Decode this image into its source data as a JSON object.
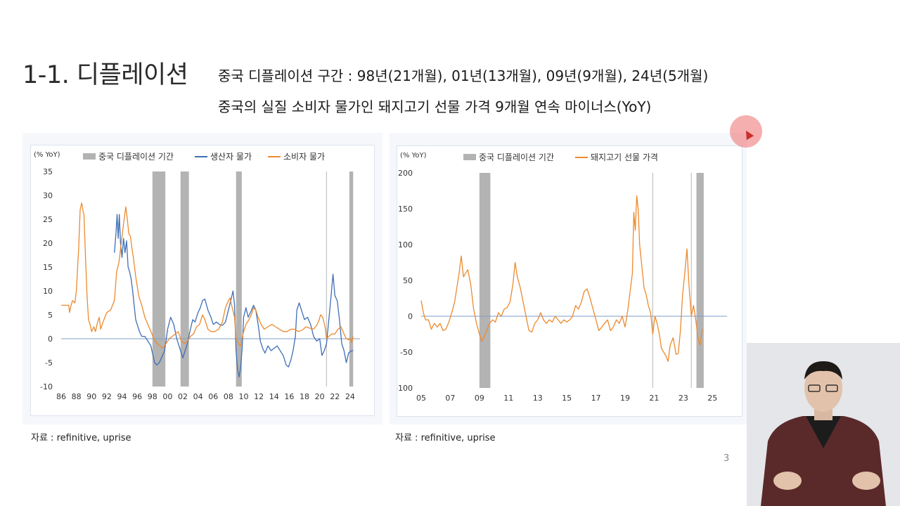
{
  "slide": {
    "title": "1-1. 디플레이션",
    "subtitle_1": "중국 디플레이션 구간 : 98년(21개월), 01년(13개월), 09년(9개월), 24년(5개월)",
    "subtitle_2": "중국의 실질 소비자 물가인 돼지고기 선물 가격 9개월 연속 마이너스(YoY)",
    "page_number": "3"
  },
  "source_left": "자료 : refinitive, uprise",
  "source_right": "자료 : refinitive, uprise",
  "colors": {
    "ppi": "#3f6fb5",
    "cpi": "#ec8a2f",
    "deflation_band": "#b3b3b3",
    "axis": "#7d9cc9"
  },
  "chart_data": [
    {
      "type": "line",
      "unit_label": "(% YoY)",
      "legend": [
        "중국 디플레이션 기간",
        "생산자 물가",
        "소비자 물가"
      ],
      "legend_position": "top",
      "ylim": [
        -10,
        35
      ],
      "yticks": [
        "35",
        "30",
        "25",
        "20",
        "15",
        "10",
        "5",
        "0",
        "-5",
        "-10"
      ],
      "xlim": [
        1986,
        2025.3
      ],
      "xticks": [
        "86",
        "88",
        "90",
        "92",
        "94",
        "96",
        "98",
        "00",
        "02",
        "04",
        "06",
        "08",
        "10",
        "12",
        "14",
        "16",
        "18",
        "20",
        "22",
        "24"
      ],
      "deflation_bands": [
        [
          1998.0,
          1999.7
        ],
        [
          2001.7,
          2002.8
        ],
        [
          2009.0,
          2009.75
        ],
        [
          2023.9,
          2024.4
        ]
      ],
      "reference_lines": [
        2020.9
      ],
      "series": [
        {
          "name": "생산자 물가",
          "x": [
            1993.0,
            1993.2,
            1993.35,
            1993.5,
            1993.65,
            1993.8,
            1994.0,
            1994.2,
            1994.4,
            1994.6,
            1994.8,
            1995.0,
            1995.2,
            1995.4,
            1995.6,
            1995.8,
            1996.0,
            1996.3,
            1996.6,
            1997.0,
            1997.4,
            1997.8,
            1998.0,
            1998.3,
            1998.6,
            1998.9,
            1999.2,
            1999.6,
            2000.0,
            2000.4,
            2000.8,
            2001.2,
            2001.6,
            2002.0,
            2002.3,
            2002.6,
            2003.0,
            2003.3,
            2003.6,
            2004.0,
            2004.3,
            2004.6,
            2004.9,
            2005.3,
            2005.7,
            2006.0,
            2006.4,
            2006.8,
            2007.2,
            2007.6,
            2008.0,
            2008.3,
            2008.6,
            2008.8,
            2009.0,
            2009.2,
            2009.4,
            2009.6,
            2009.8,
            2010.0,
            2010.3,
            2010.6,
            2010.9,
            2011.3,
            2011.6,
            2011.9,
            2012.2,
            2012.5,
            2012.8,
            2013.2,
            2013.6,
            2014.0,
            2014.4,
            2014.8,
            2015.2,
            2015.6,
            2015.9,
            2016.2,
            2016.5,
            2016.8,
            2017.0,
            2017.3,
            2017.6,
            2018.0,
            2018.4,
            2018.8,
            2019.2,
            2019.6,
            2020.0,
            2020.3,
            2020.6,
            2020.9,
            2021.2,
            2021.5,
            2021.75,
            2022.0,
            2022.3,
            2022.6,
            2022.9,
            2023.2,
            2023.5,
            2023.8,
            2024.0,
            2024.2,
            2024.4
          ],
          "y": [
            18.0,
            22.0,
            26.0,
            21.0,
            26.0,
            20.0,
            17.0,
            21.0,
            18.0,
            20.5,
            15.0,
            14.0,
            12.5,
            10.0,
            7.0,
            4.0,
            3.0,
            1.5,
            0.5,
            0.5,
            -0.5,
            -1.5,
            -3.0,
            -5.0,
            -5.5,
            -5.0,
            -4.0,
            -2.5,
            2.0,
            4.5,
            3.0,
            0.0,
            -2.0,
            -4.0,
            -2.5,
            -1.0,
            2.0,
            4.0,
            3.5,
            5.5,
            6.5,
            8.0,
            8.3,
            6.0,
            4.5,
            3.0,
            3.5,
            3.0,
            2.8,
            3.5,
            6.0,
            8.0,
            10.0,
            7.0,
            -2.5,
            -6.5,
            -8.0,
            -6.0,
            -2.0,
            4.5,
            6.5,
            4.5,
            5.5,
            7.0,
            6.0,
            3.0,
            -0.5,
            -2.0,
            -3.0,
            -1.5,
            -2.5,
            -2.0,
            -1.5,
            -2.5,
            -3.5,
            -5.5,
            -5.9,
            -4.5,
            -2.5,
            0.5,
            6.0,
            7.5,
            6.0,
            4.0,
            4.5,
            3.0,
            0.5,
            -0.5,
            0.0,
            -3.5,
            -2.5,
            -1.0,
            4.0,
            9.0,
            13.5,
            9.0,
            8.0,
            4.0,
            -1.0,
            -2.5,
            -5.0,
            -3.0,
            -2.7,
            -2.5,
            -2.5
          ]
        },
        {
          "name": "소비자 물가",
          "x": [
            1986.0,
            1986.5,
            1987.0,
            1987.1,
            1987.3,
            1987.5,
            1987.8,
            1988.0,
            1988.3,
            1988.5,
            1988.7,
            1988.9,
            1989.0,
            1989.2,
            1989.4,
            1989.6,
            1989.8,
            1990.0,
            1990.3,
            1990.5,
            1990.8,
            1991.0,
            1991.2,
            1991.5,
            1992.0,
            1992.5,
            1993.0,
            1993.3,
            1993.6,
            1993.9,
            1994.2,
            1994.5,
            1994.7,
            1994.9,
            1995.1,
            1995.3,
            1995.5,
            1995.8,
            1996.2,
            1996.6,
            1997.0,
            1997.4,
            1997.8,
            1998.2,
            1998.6,
            1999.0,
            1999.4,
            1999.8,
            2000.2,
            2000.6,
            2001.0,
            2001.4,
            2001.8,
            2002.2,
            2002.6,
            2003.0,
            2003.4,
            2003.8,
            2004.2,
            2004.6,
            2004.9,
            2005.3,
            2005.7,
            2006.2,
            2006.7,
            2007.2,
            2007.6,
            2008.0,
            2008.2,
            2008.5,
            2008.8,
            2009.0,
            2009.3,
            2009.6,
            2009.9,
            2010.3,
            2010.7,
            2011.0,
            2011.3,
            2011.6,
            2011.9,
            2012.3,
            2012.7,
            2013.2,
            2013.7,
            2014.2,
            2014.7,
            2015.2,
            2015.7,
            2016.2,
            2016.7,
            2017.2,
            2017.7,
            2018.2,
            2018.7,
            2019.2,
            2019.6,
            2019.9,
            2020.1,
            2020.4,
            2020.7,
            2020.9,
            2021.2,
            2021.6,
            2022.0,
            2022.4,
            2022.8,
            2023.2,
            2023.5,
            2023.8,
            2024.0,
            2024.2,
            2024.4
          ],
          "y": [
            7.0,
            7.0,
            7.0,
            5.5,
            7.0,
            8.0,
            7.5,
            10.0,
            19.0,
            27.0,
            28.4,
            26.5,
            26.0,
            17.0,
            9.0,
            4.0,
            3.0,
            1.5,
            2.5,
            1.5,
            3.5,
            4.5,
            2.0,
            3.5,
            5.5,
            6.0,
            8.0,
            14.0,
            16.0,
            20.0,
            24.0,
            27.6,
            25.0,
            22.0,
            21.5,
            19.0,
            17.0,
            13.0,
            9.0,
            7.0,
            4.5,
            3.0,
            1.5,
            0.0,
            -1.0,
            -1.5,
            -2.0,
            -1.0,
            0.0,
            0.5,
            1.0,
            1.5,
            -0.5,
            -1.0,
            -0.5,
            0.5,
            1.0,
            2.5,
            3.0,
            5.0,
            4.0,
            2.0,
            1.5,
            1.5,
            2.0,
            3.5,
            6.5,
            8.0,
            8.5,
            6.5,
            4.5,
            0.0,
            -1.0,
            -1.5,
            1.0,
            3.0,
            4.0,
            5.0,
            6.5,
            6.0,
            4.5,
            3.0,
            2.0,
            2.5,
            3.0,
            2.5,
            2.0,
            1.5,
            1.5,
            2.0,
            2.0,
            1.5,
            1.8,
            2.5,
            2.2,
            2.0,
            2.8,
            3.8,
            5.0,
            4.5,
            2.5,
            0.0,
            0.5,
            1.0,
            1.0,
            2.0,
            2.5,
            1.0,
            0.0,
            -0.2,
            0.0,
            -0.8,
            0.5
          ]
        }
      ]
    },
    {
      "type": "line",
      "unit_label": "(% YoY)",
      "legend": [
        "중국 디플레이션 기간",
        "돼지고기 선물 가격"
      ],
      "legend_position": "top",
      "ylim": [
        -100,
        200
      ],
      "yticks": [
        "200",
        "150",
        "100",
        "50",
        "0",
        "-50",
        "-100"
      ],
      "xlim": [
        2005,
        2026
      ],
      "xticks": [
        "05",
        "07",
        "09",
        "11",
        "13",
        "15",
        "17",
        "19",
        "21",
        "23",
        "25"
      ],
      "deflation_bands": [
        [
          2009.0,
          2009.75
        ],
        [
          2023.9,
          2024.4
        ]
      ],
      "reference_lines": [
        2020.9,
        2023.55
      ],
      "series": [
        {
          "name": "돼지고기 선물 가격",
          "x": [
            2005.0,
            2005.15,
            2005.3,
            2005.5,
            2005.7,
            2005.9,
            2006.1,
            2006.3,
            2006.5,
            2006.7,
            2006.9,
            2007.1,
            2007.3,
            2007.45,
            2007.6,
            2007.75,
            2007.9,
            2008.05,
            2008.2,
            2008.4,
            2008.6,
            2008.8,
            2009.0,
            2009.15,
            2009.3,
            2009.5,
            2009.7,
            2009.9,
            2010.1,
            2010.3,
            2010.5,
            2010.7,
            2010.9,
            2011.1,
            2011.3,
            2011.45,
            2011.6,
            2011.8,
            2012.0,
            2012.2,
            2012.4,
            2012.6,
            2012.8,
            2013.0,
            2013.2,
            2013.4,
            2013.6,
            2013.8,
            2014.0,
            2014.2,
            2014.4,
            2014.6,
            2014.8,
            2015.0,
            2015.2,
            2015.4,
            2015.6,
            2015.8,
            2016.0,
            2016.2,
            2016.4,
            2016.6,
            2016.8,
            2017.0,
            2017.2,
            2017.4,
            2017.6,
            2017.8,
            2018.0,
            2018.2,
            2018.4,
            2018.6,
            2018.8,
            2019.0,
            2019.2,
            2019.35,
            2019.5,
            2019.6,
            2019.7,
            2019.8,
            2019.9,
            2020.0,
            2020.1,
            2020.2,
            2020.3,
            2020.45,
            2020.6,
            2020.75,
            2020.9,
            2021.05,
            2021.2,
            2021.35,
            2021.5,
            2021.65,
            2021.8,
            2021.95,
            2022.1,
            2022.3,
            2022.5,
            2022.65,
            2022.8,
            2022.95,
            2023.1,
            2023.25,
            2023.4,
            2023.55,
            2023.7,
            2023.85,
            2024.0,
            2024.15,
            2024.3
          ],
          "y": [
            22.0,
            5.0,
            -5.0,
            -5.0,
            -18.0,
            -10.0,
            -15.0,
            -10.0,
            -20.0,
            -18.0,
            -8.0,
            5.0,
            20.0,
            40.0,
            60.0,
            84.0,
            55.0,
            60.0,
            65.0,
            45.0,
            10.0,
            -10.0,
            -25.0,
            -35.0,
            -30.0,
            -20.0,
            -10.0,
            -5.0,
            -8.0,
            5.0,
            0.0,
            10.0,
            12.0,
            20.0,
            45.0,
            75.0,
            55.0,
            40.0,
            20.0,
            0.0,
            -20.0,
            -22.0,
            -10.0,
            -5.0,
            5.0,
            -5.0,
            -10.0,
            -5.0,
            -8.0,
            0.0,
            -5.0,
            -10.0,
            -5.0,
            -8.0,
            -5.0,
            0.0,
            15.0,
            10.0,
            20.0,
            35.0,
            38.0,
            25.0,
            10.0,
            -5.0,
            -20.0,
            -15.0,
            -10.0,
            -5.0,
            -20.0,
            -15.0,
            -5.0,
            -10.0,
            0.0,
            -15.0,
            10.0,
            35.0,
            60.0,
            145.0,
            120.0,
            168.0,
            150.0,
            100.0,
            80.0,
            60.0,
            40.0,
            30.0,
            15.0,
            5.0,
            -25.0,
            0.0,
            -10.0,
            -25.0,
            -45.0,
            -50.0,
            -55.0,
            -63.0,
            -40.0,
            -30.0,
            -53.0,
            -52.0,
            -20.0,
            30.0,
            60.0,
            94.0,
            40.0,
            0.0,
            15.0,
            -5.0,
            -30.0,
            -40.0,
            -18.0
          ]
        }
      ]
    }
  ]
}
